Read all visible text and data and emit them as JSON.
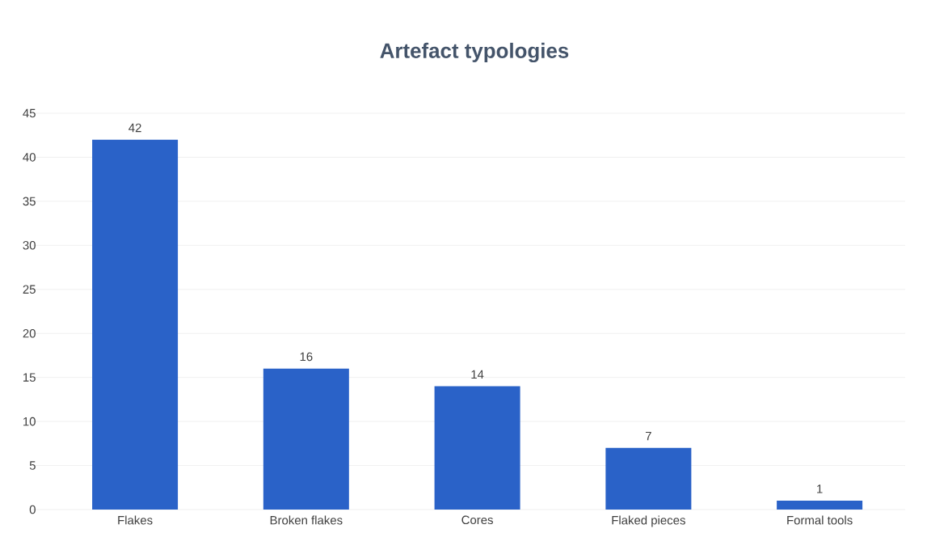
{
  "chart_data": {
    "type": "bar",
    "title": "Artefact typologies",
    "categories": [
      "Flakes",
      "Broken flakes",
      "Cores",
      "Flaked pieces",
      "Formal tools"
    ],
    "values": [
      42,
      16,
      14,
      7,
      1
    ],
    "color": "#2a62c8",
    "ylim": [
      0,
      45
    ],
    "yticks": [
      0,
      5,
      10,
      15,
      20,
      25,
      30,
      35,
      40,
      45
    ],
    "grid": "y",
    "data_labels": true
  }
}
